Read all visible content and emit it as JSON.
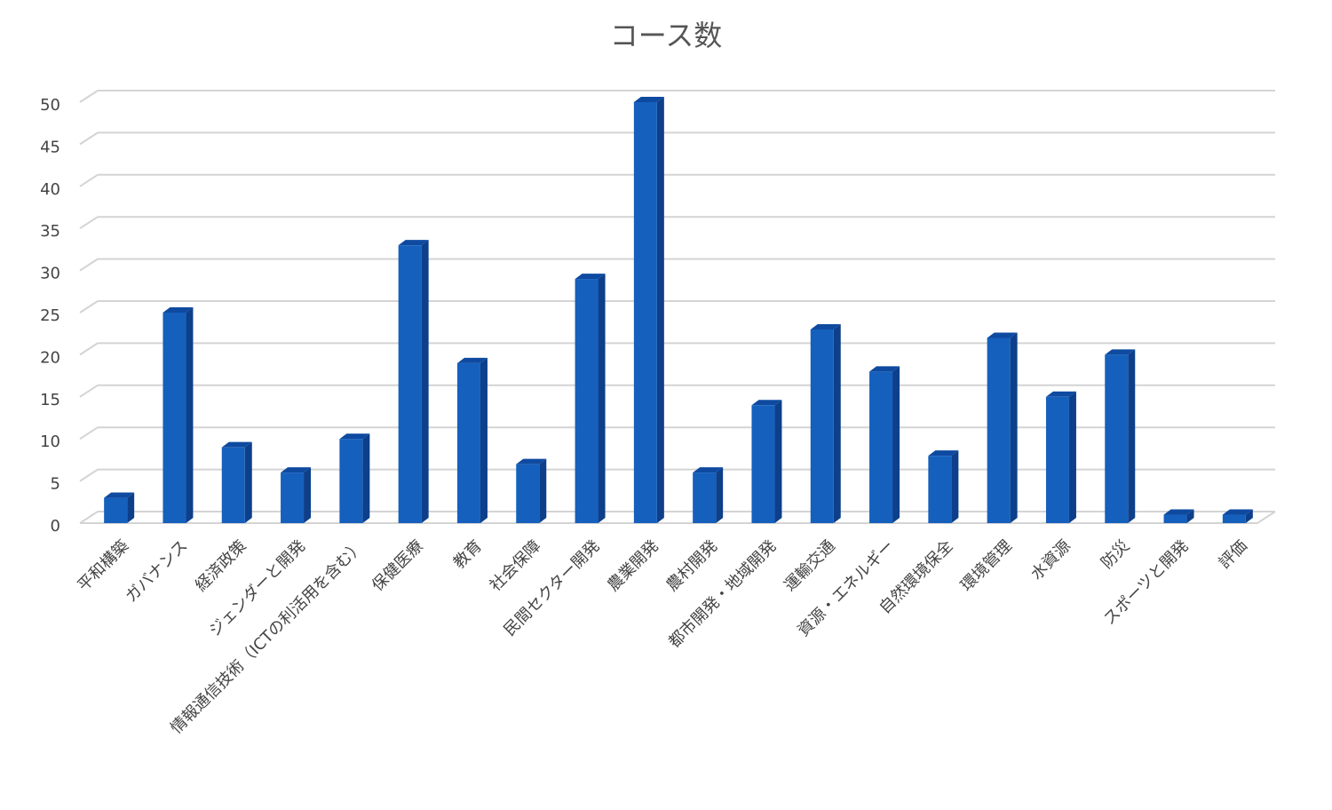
{
  "chart_data": {
    "type": "bar",
    "title": "コース数",
    "categories": [
      "平和構築",
      "ガバナンス",
      "経済政策",
      "ジェンダーと開発",
      "情報通信技術（ICTの利活用を含む）",
      "保健医療",
      "教育",
      "社会保障",
      "民間セクター開発",
      "農業開発",
      "農村開発",
      "都市開発・地域開発",
      "運輸交通",
      "資源・エネルギー",
      "自然環境保全",
      "環境管理",
      "水資源",
      "防災",
      "スポーツと開発",
      "評価"
    ],
    "values": [
      3,
      25,
      9,
      6,
      10,
      33,
      19,
      7,
      29,
      50,
      6,
      14,
      23,
      18,
      8,
      22,
      15,
      20,
      1,
      1
    ],
    "color": "#1560bd",
    "ylim": [
      0,
      50
    ],
    "yticks": [
      0,
      5,
      10,
      15,
      20,
      25,
      30,
      35,
      40,
      45,
      50
    ],
    "grid": true
  }
}
